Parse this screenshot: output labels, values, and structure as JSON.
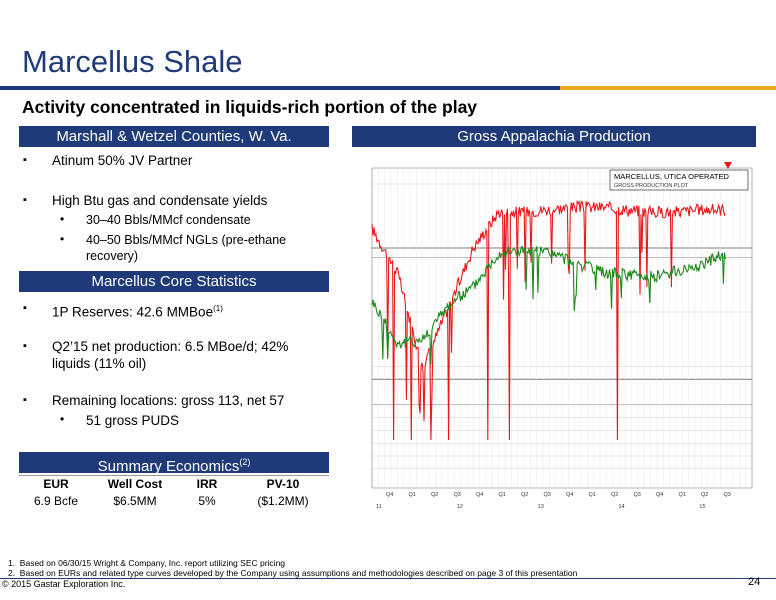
{
  "title": "Marcellus Shale",
  "subtitle": "Activity concentrated in liquids-rich portion of the play",
  "left_header": "Marshall & Wetzel Counties, W. Va.",
  "right_header": "Gross Appalachia Production",
  "bullets_top": [
    {
      "text": "Atinum 50% JV Partner"
    },
    {
      "text": "High Btu gas and condensate yields"
    }
  ],
  "sub_bullets_top": [
    {
      "text": "30–40 Bbls/MMcf condensate"
    },
    {
      "text": "40–50 Bbls/MMcf NGLs (pre-ethane"
    },
    {
      "text": "recovery)"
    }
  ],
  "core_header": "Marcellus Core Statistics",
  "core_bullets": [
    {
      "text": "1P Reserves: 42.6 MMBoe",
      "sup": "(1)"
    },
    {
      "text": "Q2’15 net production: 6.5 MBoe/d; 42%"
    },
    {
      "text": "liquids (11% oil)"
    },
    {
      "text": "Remaining locations: gross 113, net 57"
    }
  ],
  "core_sub_bullet": "51 gross PUDS",
  "econ_header": "Summary Economics",
  "econ_header_sup": "(2)",
  "econ_table": {
    "headers": [
      "EUR",
      "Well Cost",
      "IRR",
      "PV-10"
    ],
    "row": [
      "6.9 Bcfe",
      "$6.5MM",
      "5%",
      "($1.2MM)"
    ]
  },
  "chart_box": {
    "title": "MARCELLUS, UTICA OPERATED",
    "subtitle": "GROSS PRODUCTION PLOT"
  },
  "chart_data": {
    "type": "line",
    "x_ticks": [
      "Q4",
      "Q1",
      "Q2",
      "Q3",
      "Q4",
      "Q1",
      "Q2",
      "Q3",
      "Q4",
      "Q1",
      "Q2",
      "Q3",
      "Q4",
      "Q1",
      "Q2",
      "Q3"
    ],
    "year_labels": [
      "11",
      "12",
      "13",
      "14",
      "15"
    ],
    "series": [
      {
        "color": "#e8191c",
        "level": [
          0.88,
          0.7,
          0.3,
          0.55,
          0.8,
          0.95,
          0.95,
          0.96,
          0.97,
          0.97,
          0.96,
          0.95,
          0.95,
          0.96,
          0.96,
          0.96
        ]
      },
      {
        "color": "#1e8a1e",
        "level": [
          0.58,
          0.4,
          0.42,
          0.56,
          0.64,
          0.78,
          0.79,
          0.78,
          0.74,
          0.7,
          0.69,
          0.68,
          0.7,
          0.73,
          0.78,
          0.75
        ]
      }
    ]
  },
  "footnotes": [
    "1.  Based on 06/30/15 Wright & Company, Inc. report utilizing SEC pricing",
    "2.  Based on EURs and related type curves developed by the Company using assumptions and methodologies described on page 3 of this presentation"
  ],
  "copyright": "© 2015 Gastar Exploration Inc.",
  "page_number": "24"
}
